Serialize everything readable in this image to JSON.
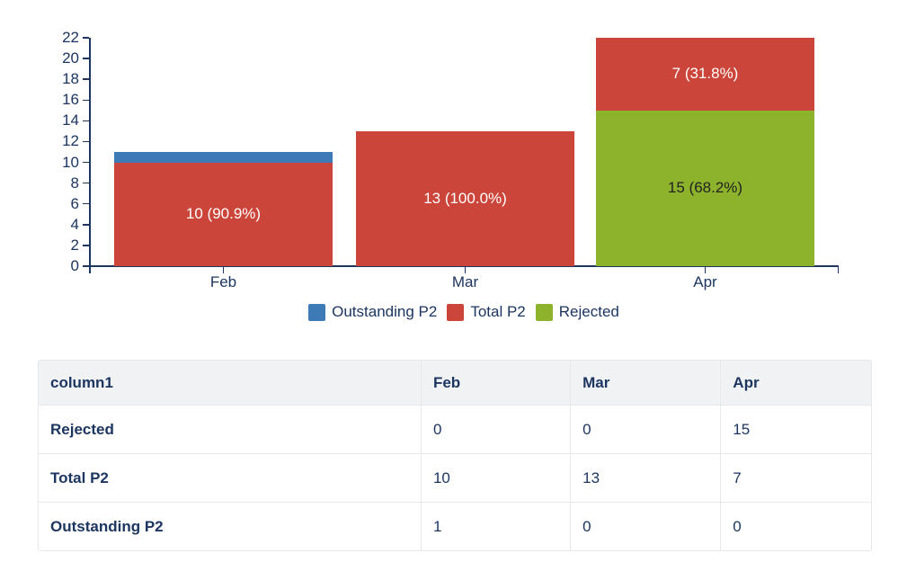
{
  "colors": {
    "text_navy": "#1c3660",
    "axis": "#1c3660",
    "bar_blue": "#3d7ab6",
    "bar_red": "#cc453a",
    "bar_green": "#8db22b",
    "table_header_bg": "#f1f2f4",
    "table_border": "#e6e8ec",
    "background": "#ffffff"
  },
  "chart_data": {
    "type": "bar",
    "stacked": true,
    "categories": [
      "Feb",
      "Mar",
      "Apr"
    ],
    "series": [
      {
        "name": "Rejected",
        "color": "#8db22b",
        "values": [
          0,
          0,
          15
        ],
        "labels": [
          null,
          null,
          {
            "text": "15 (68.2%)",
            "color": "#222222"
          }
        ]
      },
      {
        "name": "Total P2",
        "color": "#cc453a",
        "values": [
          10,
          13,
          7
        ],
        "labels": [
          {
            "text": "10 (90.9%)",
            "color": "#ffffff"
          },
          {
            "text": "13 (100.0%)",
            "color": "#ffffff"
          },
          {
            "text": "7 (31.8%)",
            "color": "#ffffff"
          }
        ]
      },
      {
        "name": "Outstanding P2",
        "color": "#3d7ab6",
        "values": [
          1,
          0,
          0
        ],
        "labels": [
          null,
          null,
          null
        ]
      }
    ],
    "stack_order_bottom_to_top": [
      "Rejected",
      "Total P2",
      "Outstanding P2"
    ],
    "y_ticks": [
      0,
      2,
      4,
      6,
      8,
      10,
      12,
      14,
      16,
      18,
      20,
      22
    ],
    "ylim": [
      0,
      22
    ],
    "ytick_step": 2,
    "grid": false,
    "legend_position": "bottom",
    "legend": [
      {
        "label": "Outstanding P2",
        "color": "#3d7ab6"
      },
      {
        "label": "Total P2",
        "color": "#cc453a"
      },
      {
        "label": "Rejected",
        "color": "#8db22b"
      }
    ]
  },
  "table": {
    "headers": [
      "column1",
      "Feb",
      "Mar",
      "Apr"
    ],
    "rows": [
      {
        "label": "Rejected",
        "values": [
          "0",
          "0",
          "15"
        ]
      },
      {
        "label": "Total P2",
        "values": [
          "10",
          "13",
          "7"
        ]
      },
      {
        "label": "Outstanding P2",
        "values": [
          "1",
          "0",
          "0"
        ]
      }
    ]
  }
}
